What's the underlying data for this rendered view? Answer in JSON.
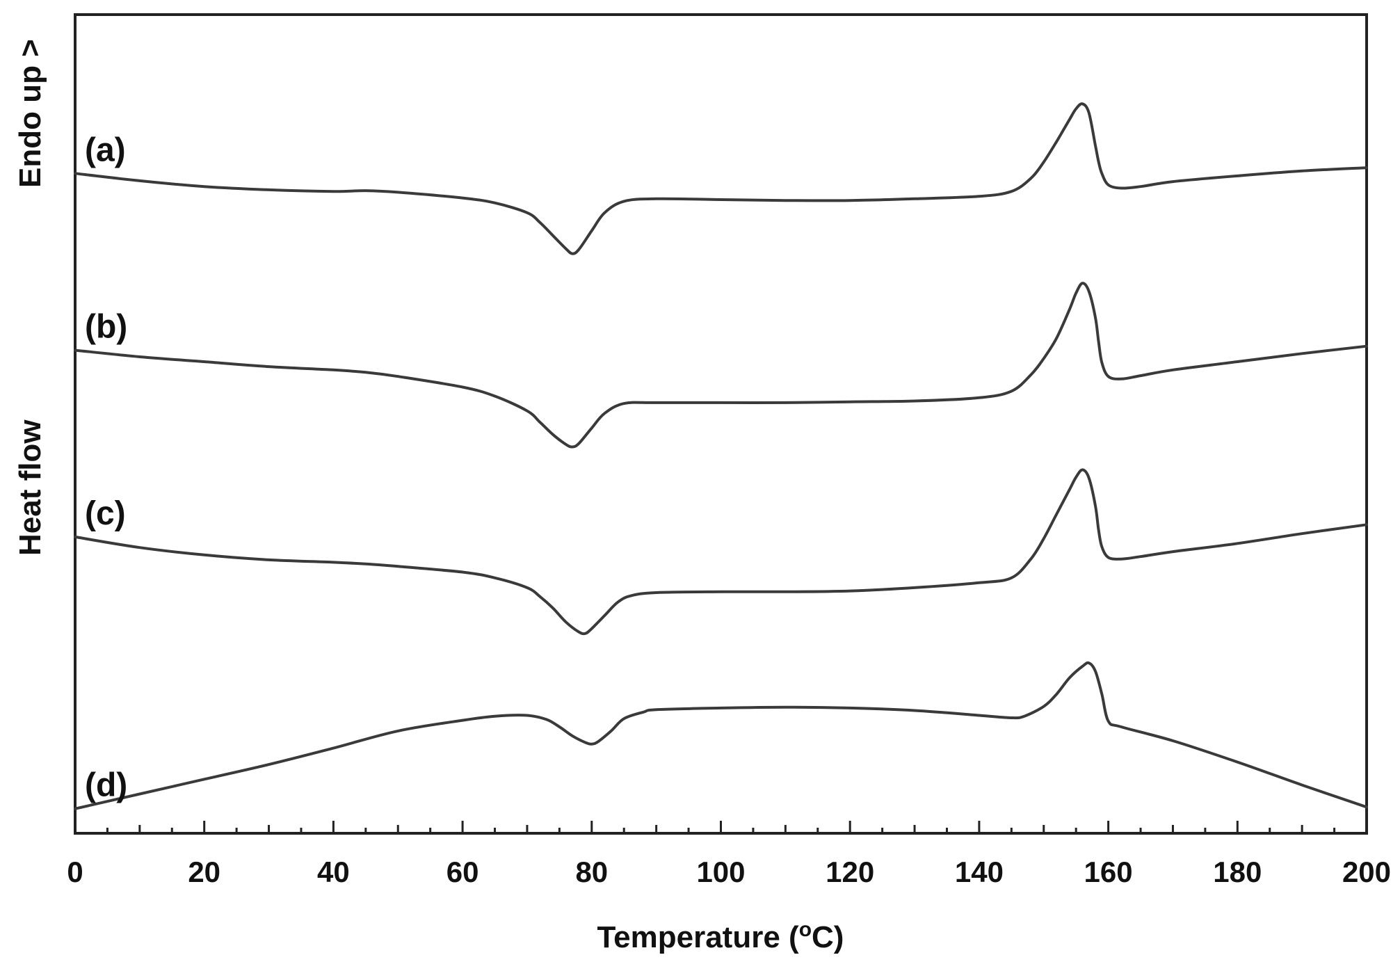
{
  "chart_data": {
    "type": "line",
    "xlabel": "Temperature (°C)",
    "xlabel_parts": {
      "pre": "Temperature (",
      "sup": "o",
      "post": "C)"
    },
    "ylabel": "Heat flow",
    "ylabel_endo": "Endo up >",
    "xlim": [
      0,
      200
    ],
    "x_ticks": [
      0,
      20,
      40,
      60,
      80,
      100,
      120,
      140,
      160,
      180,
      200
    ],
    "x_tick_labels": [
      "0",
      "20",
      "40",
      "60",
      "80",
      "100",
      "120",
      "140",
      "160",
      "180",
      "200"
    ],
    "y_ticks_shown": false,
    "y_units": "arbitrary heat flow (relative)",
    "ylim": [
      0,
      100
    ],
    "grid": false,
    "series": [
      {
        "name": "(a)",
        "x": [
          0,
          10,
          20,
          30,
          40,
          45,
          50,
          60,
          65,
          70,
          72,
          74,
          76,
          77,
          78,
          80,
          82,
          85,
          90,
          100,
          110,
          120,
          130,
          140,
          145,
          148,
          150,
          152,
          154,
          155,
          156,
          157,
          158,
          158.5,
          159,
          160,
          162,
          165,
          170,
          180,
          190,
          200
        ],
        "y": [
          80.6,
          79.7,
          79.0,
          78.6,
          78.4,
          78.5,
          78.3,
          77.6,
          77.0,
          75.8,
          74.6,
          73.0,
          71.4,
          70.8,
          71.3,
          73.6,
          75.8,
          77.2,
          77.5,
          77.4,
          77.3,
          77.3,
          77.5,
          77.8,
          78.4,
          80.0,
          82.0,
          84.5,
          87.2,
          88.5,
          89.1,
          88.0,
          84.0,
          82.0,
          80.6,
          79.2,
          78.8,
          79.0,
          79.6,
          80.3,
          80.9,
          81.3
        ]
      },
      {
        "name": "(b)",
        "x": [
          0,
          10,
          20,
          30,
          40,
          45,
          50,
          60,
          65,
          70,
          72,
          74,
          76,
          77,
          78,
          80,
          82,
          85,
          90,
          100,
          110,
          120,
          130,
          140,
          145,
          148,
          150,
          152,
          154,
          155,
          156,
          157,
          158,
          158.5,
          159,
          160,
          162,
          165,
          170,
          180,
          190,
          200
        ],
        "y": [
          59.0,
          58.2,
          57.6,
          57.0,
          56.6,
          56.3,
          55.8,
          54.5,
          53.4,
          51.6,
          50.2,
          48.7,
          47.5,
          47.2,
          47.6,
          49.5,
          51.3,
          52.5,
          52.6,
          52.6,
          52.6,
          52.7,
          52.8,
          53.2,
          54.0,
          56.0,
          58.0,
          60.5,
          64.0,
          66.0,
          67.2,
          66.2,
          63.0,
          60.0,
          57.5,
          55.8,
          55.5,
          55.9,
          56.6,
          57.6,
          58.6,
          59.5
        ]
      },
      {
        "name": "(c)",
        "x": [
          0,
          10,
          20,
          30,
          40,
          45,
          50,
          60,
          65,
          70,
          72,
          74,
          76,
          78,
          79,
          80,
          82,
          84,
          86,
          90,
          100,
          110,
          120,
          130,
          140,
          145,
          148,
          150,
          152,
          154,
          155,
          156,
          157,
          158,
          158.5,
          159,
          160,
          162,
          165,
          170,
          180,
          190,
          200
        ],
        "y": [
          36.2,
          34.9,
          34.0,
          33.4,
          33.1,
          32.9,
          32.6,
          31.9,
          31.2,
          30.0,
          28.9,
          27.5,
          25.8,
          24.6,
          24.4,
          25.0,
          26.6,
          28.2,
          29.0,
          29.4,
          29.5,
          29.5,
          29.6,
          30.0,
          30.6,
          31.2,
          33.5,
          36.0,
          39.0,
          42.0,
          43.5,
          44.4,
          43.4,
          40.0,
          37.0,
          35.0,
          33.7,
          33.5,
          33.8,
          34.4,
          35.4,
          36.6,
          37.7
        ]
      },
      {
        "name": "(d)",
        "x": [
          0,
          10,
          20,
          30,
          40,
          50,
          60,
          65,
          70,
          73,
          75,
          77,
          79,
          80,
          81,
          83,
          85,
          88,
          90,
          100,
          110,
          120,
          130,
          140,
          145,
          147,
          150,
          152,
          154,
          156,
          157,
          158,
          159,
          160,
          162,
          170,
          180,
          190,
          200
        ],
        "y": [
          3.0,
          4.8,
          6.6,
          8.4,
          10.4,
          12.5,
          13.8,
          14.3,
          14.4,
          13.9,
          13.0,
          11.9,
          11.1,
          10.9,
          11.2,
          12.5,
          14.0,
          14.8,
          15.1,
          15.3,
          15.4,
          15.3,
          15.0,
          14.4,
          14.1,
          14.3,
          15.5,
          17.0,
          19.0,
          20.4,
          20.8,
          19.8,
          17.0,
          13.7,
          13.0,
          11.3,
          8.7,
          5.9,
          3.2
        ]
      }
    ]
  }
}
